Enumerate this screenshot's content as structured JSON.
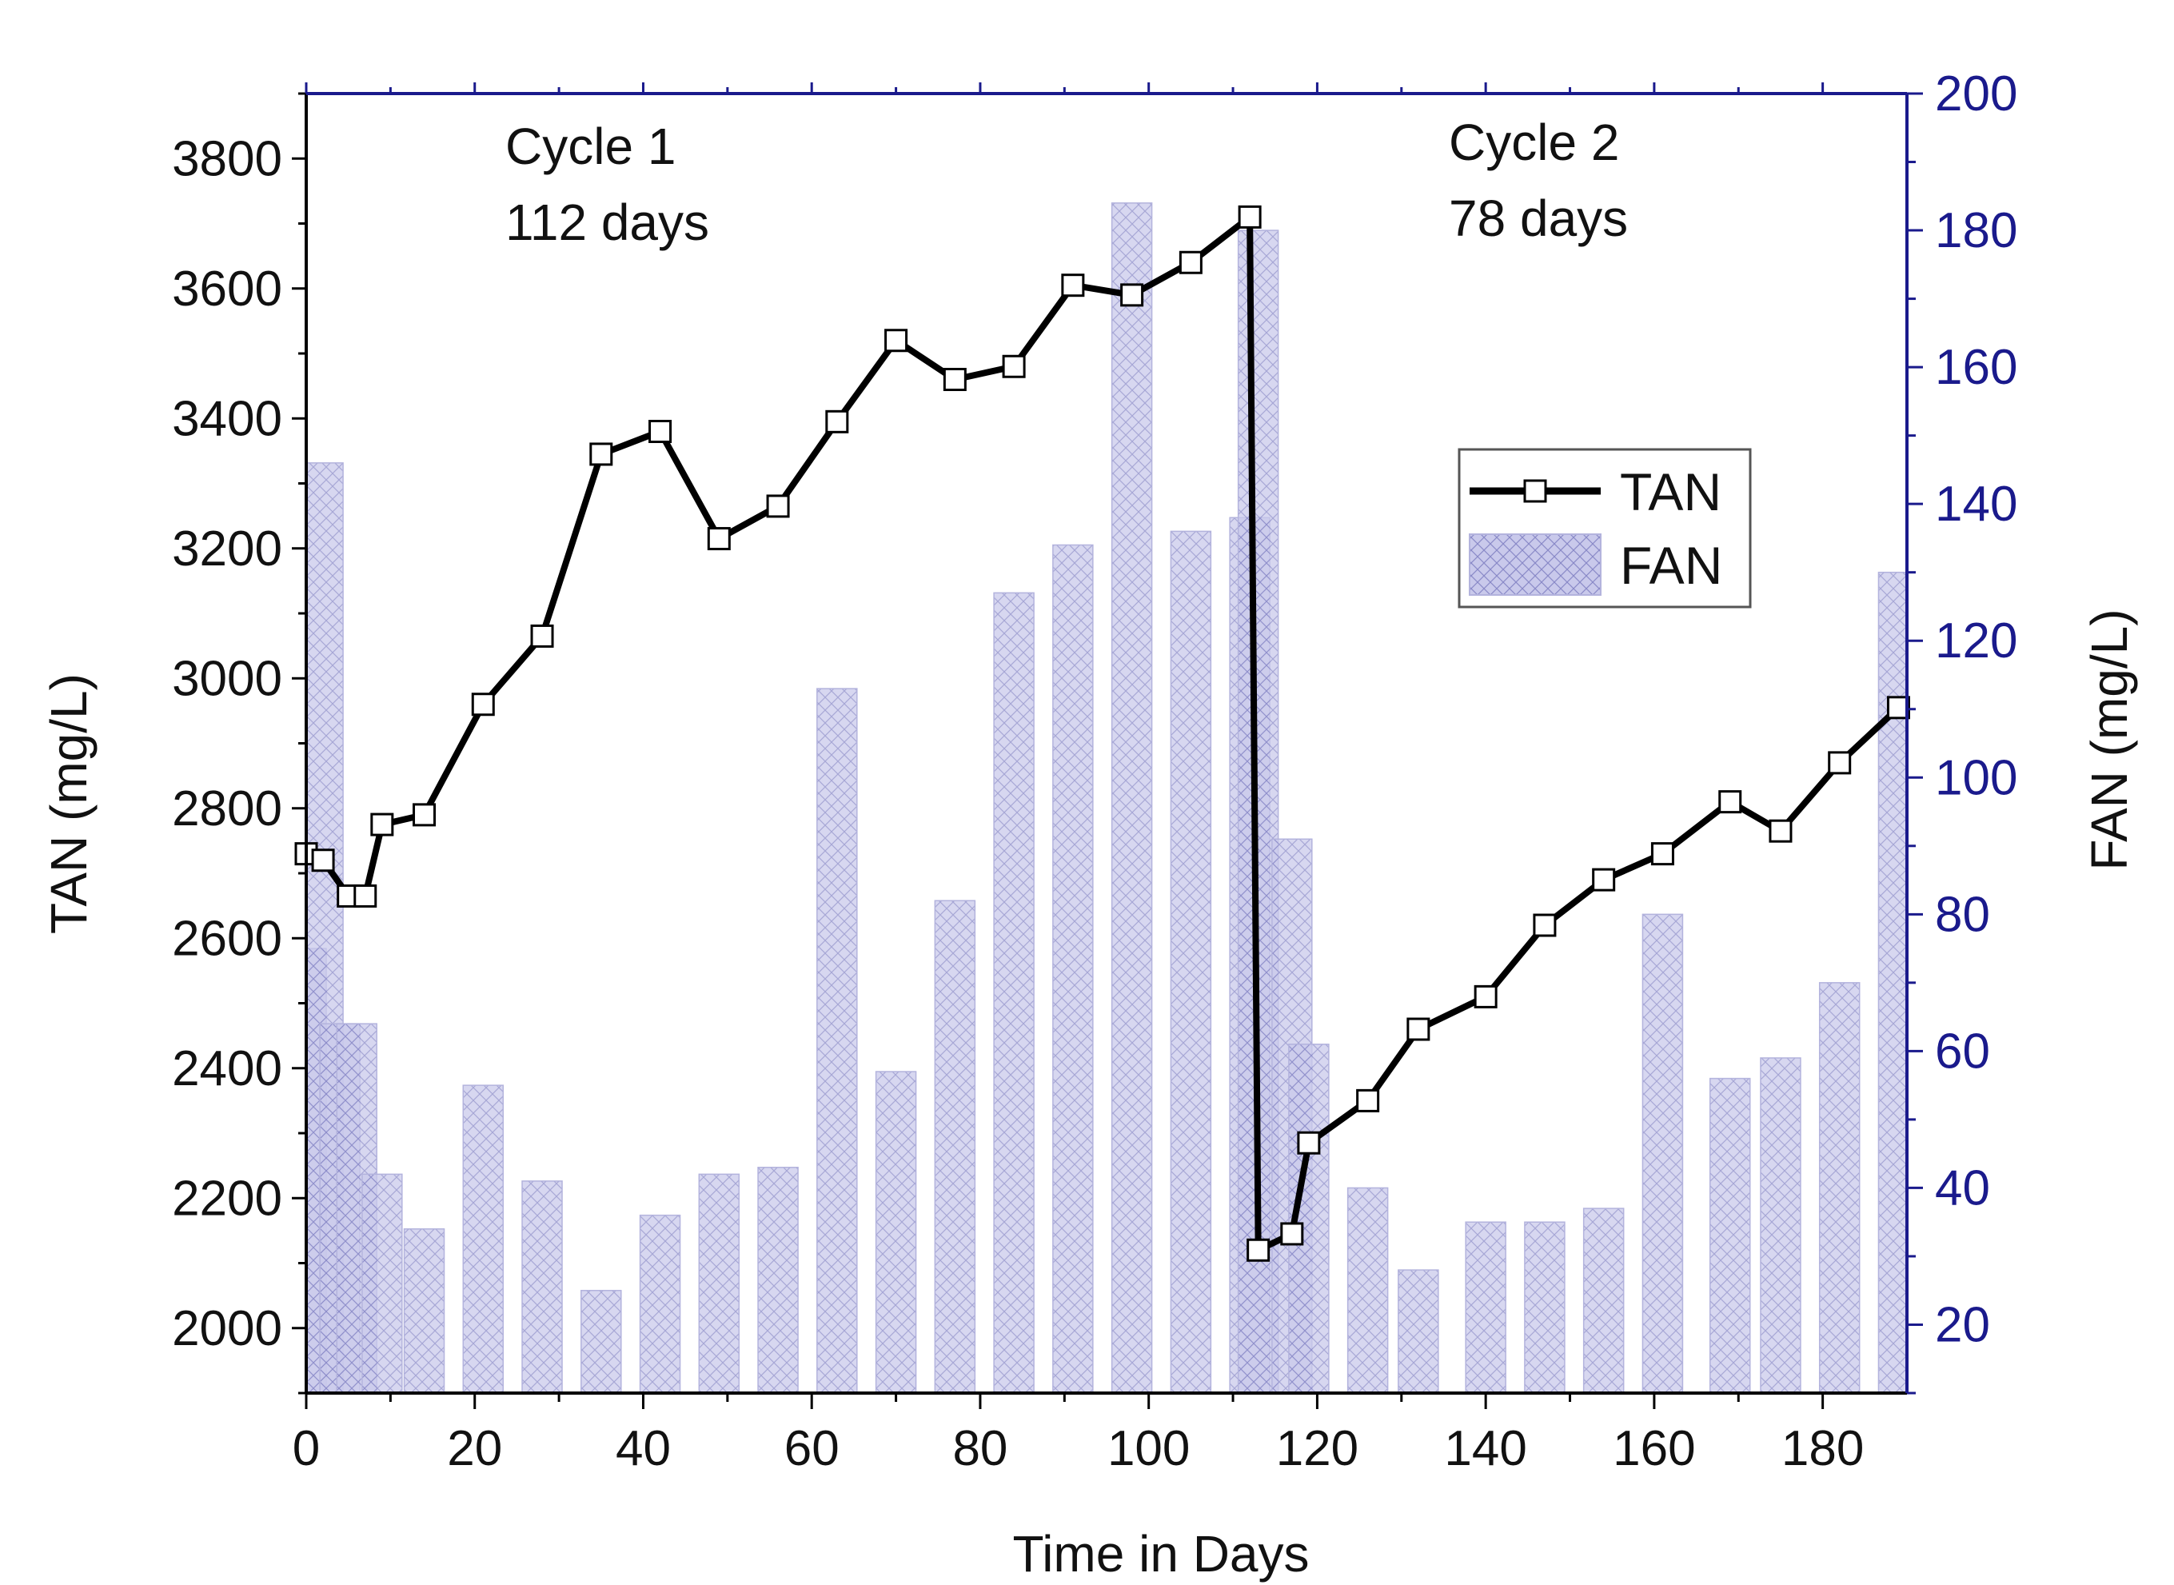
{
  "chart_data": {
    "type": "bar+line",
    "xlabel": "Time in Days",
    "ylabel_left": "TAN (mg/L)",
    "ylabel_right": "FAN (mg/L)",
    "xlim": [
      0,
      190
    ],
    "ylim_left": [
      1900,
      3900
    ],
    "ylim_right": [
      10,
      200
    ],
    "x_ticks": [
      0,
      20,
      40,
      60,
      80,
      100,
      120,
      140,
      160,
      180
    ],
    "y_left_ticks": [
      2000,
      2200,
      2400,
      2600,
      2800,
      3000,
      3200,
      3400,
      3600,
      3800
    ],
    "y_right_ticks": [
      20,
      40,
      60,
      80,
      100,
      120,
      140,
      160,
      180,
      200
    ],
    "annotations": [
      {
        "line1": "Cycle 1",
        "line2": "112 days"
      },
      {
        "line1": "Cycle 2",
        "line2": "78 days"
      }
    ],
    "legend": {
      "position": "right",
      "tan_label": "TAN",
      "fan_label": "FAN"
    },
    "colors": {
      "axis_right": "#1a1a8c",
      "bar_fill": "#c9c9eb",
      "bar_hatch": "#8a8ac8",
      "line": "#000000"
    },
    "series": [
      {
        "name": "TAN",
        "type": "line",
        "axis": "left",
        "x": [
          0,
          2,
          5,
          7,
          9,
          14,
          21,
          28,
          35,
          42,
          49,
          56,
          63,
          70,
          77,
          84,
          91,
          98,
          105,
          112,
          113,
          117,
          119,
          126,
          132,
          140,
          147,
          154,
          161,
          169,
          175,
          182,
          189
        ],
        "values": [
          2730,
          2720,
          2665,
          2665,
          2775,
          2790,
          2960,
          3065,
          3345,
          3380,
          3215,
          3265,
          3395,
          3520,
          3460,
          3480,
          3605,
          3590,
          3640,
          3710,
          2120,
          2145,
          2285,
          2350,
          2460,
          2510,
          2620,
          2690,
          2730,
          2810,
          2765,
          2870,
          2955
        ]
      },
      {
        "name": "FAN",
        "type": "bar",
        "axis": "right",
        "x": [
          0,
          2,
          4,
          6,
          9,
          14,
          21,
          28,
          35,
          42,
          49,
          56,
          63,
          70,
          77,
          84,
          91,
          98,
          105,
          112,
          113,
          117,
          119,
          126,
          132,
          140,
          147,
          154,
          161,
          169,
          175,
          182,
          189
        ],
        "values": [
          75,
          146,
          64,
          64,
          42,
          34,
          55,
          41,
          25,
          36,
          42,
          43,
          113,
          57,
          82,
          127,
          134,
          184,
          136,
          138,
          180,
          91,
          61,
          40,
          28,
          35,
          35,
          37,
          80,
          56,
          59,
          70,
          130
        ]
      }
    ]
  }
}
